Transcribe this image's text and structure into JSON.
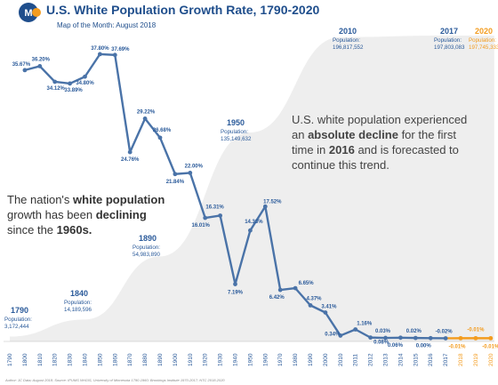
{
  "header": {
    "title": "U.S. White Population Growth Rate, 1790-2020",
    "subtitle": "Map of the Month: August 2018",
    "logo_letters": "M",
    "colors": {
      "navy": "#1f4e8c",
      "accent": "#f39c1f"
    }
  },
  "chart_data": {
    "type": "line",
    "title": "U.S. White Population Growth Rate, 1790-2020",
    "x": [
      "1790",
      "1800",
      "1810",
      "1820",
      "1830",
      "1840",
      "1850",
      "1860",
      "1870",
      "1880",
      "1890",
      "1900",
      "1910",
      "1920",
      "1930",
      "1940",
      "1950",
      "1960",
      "1970",
      "1980",
      "1990",
      "2000",
      "2010",
      "2011",
      "2012",
      "2013",
      "2014",
      "2015",
      "2016",
      "2017",
      "2018",
      "2019",
      "2020"
    ],
    "series": [
      {
        "values": [
          null,
          35.67,
          36.2,
          34.12,
          33.89,
          34.8,
          37.8,
          37.69,
          24.76,
          29.22,
          26.68,
          21.84,
          22.0,
          16.01,
          16.31,
          7.19,
          14.33,
          17.52,
          6.42,
          6.65,
          4.37,
          3.41,
          0.34,
          1.16,
          0.08,
          0.03,
          0.06,
          0.02,
          0.0,
          -0.02,
          -0.01,
          -0.01,
          -0.01
        ],
        "labels": [
          "",
          "35.67%",
          "36.20%",
          "34.12%",
          "33.89%",
          "34.80%",
          "37.80%",
          "37.69%",
          "24.76%",
          "29.22%",
          "26.68%",
          "21.84%",
          "22.00%",
          "16.01%",
          "16.31%",
          "7.19%",
          "14.33%",
          "17.52%",
          "6.42%",
          "6.65%",
          "4.37%",
          "3.41%",
          "0.34%",
          "1.16%",
          "0.08%",
          "0.03%",
          "0.06%",
          "0.02%",
          "0.00%",
          "-0.02%",
          "-0.01%",
          "-0.01%",
          "-0.01%"
        ],
        "color": "#4a73a8",
        "forecast_color": "#f39c1f",
        "forecast_from": "2017"
      }
    ],
    "ylim": [
      -1,
      40
    ],
    "population_area": {
      "x": [
        "1790",
        "1840",
        "1890",
        "1950",
        "2010",
        "2017",
        "2020"
      ],
      "values": [
        3172444,
        14189596,
        54983890,
        135149632,
        196817552,
        197803083,
        197745333
      ],
      "color": "#eeeeee"
    },
    "population_labels": [
      {
        "year": "1790",
        "label": "Population:",
        "value": "3,172,444"
      },
      {
        "year": "1840",
        "label": "Population:",
        "value": "14,189,596"
      },
      {
        "year": "1890",
        "label": "Population:",
        "value": "54,983,890"
      },
      {
        "year": "1950",
        "label": "Population:",
        "value": "135,149,632"
      },
      {
        "year": "2010",
        "label": "Population:",
        "value": "196,817,552"
      },
      {
        "year": "2017",
        "label": "Population:",
        "value": "197,803,083"
      },
      {
        "year": "2020",
        "label": "Population:",
        "value": "197,745,333",
        "forecast": true
      }
    ],
    "annotations": {
      "left": "The nation's white population growth has been declining since the 1960s.",
      "right": "U.S. white population experienced an absolute decline for the first time in 2016 and is forecasted to continue this trend."
    }
  },
  "footer": "Author: JC Data; August 2018; Source: IPUMS NHGIS, University of Minnesota 1790-1960; Brookings Institute 1970-2017; NTC 2018-2020"
}
